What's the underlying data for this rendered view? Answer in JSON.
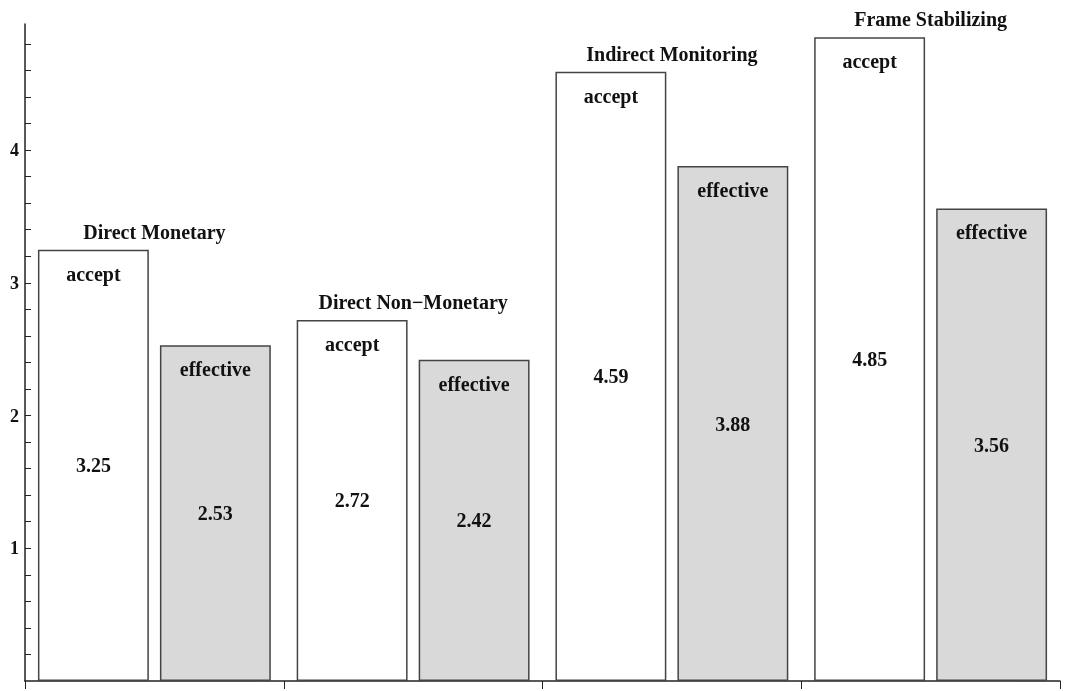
{
  "chart_data": {
    "type": "bar",
    "categories": [
      "Direct Monetary",
      "Direct Non−Monetary",
      "Indirect Monitoring",
      "Frame Stabilizing"
    ],
    "series": [
      {
        "name": "accept",
        "color": "#ffffff",
        "values": [
          3.25,
          2.72,
          4.59,
          4.85
        ]
      },
      {
        "name": "effective",
        "color": "#d9d9d9",
        "values": [
          2.53,
          2.42,
          3.88,
          3.56
        ]
      }
    ],
    "data_labels": true,
    "ylim": [
      0,
      4.95
    ],
    "yticks": [
      {
        "value": 0.2,
        "label": null
      },
      {
        "value": 0.4,
        "label": null
      },
      {
        "value": 0.6,
        "label": null
      },
      {
        "value": 0.8,
        "label": null
      },
      1,
      {
        "value": 1.2,
        "label": null
      },
      {
        "value": 1.4,
        "label": null
      },
      {
        "value": 1.6,
        "label": null
      },
      {
        "value": 1.8,
        "label": null
      },
      2,
      {
        "value": 2.2,
        "label": null
      },
      {
        "value": 2.4,
        "label": null
      },
      {
        "value": 2.6,
        "label": null
      },
      {
        "value": 2.8,
        "label": null
      },
      3,
      {
        "value": 3.2,
        "label": null
      },
      {
        "value": 3.4,
        "label": null
      },
      {
        "value": 3.6,
        "label": null
      },
      {
        "value": 3.8,
        "label": null
      },
      4,
      {
        "value": 4.2,
        "label": null
      },
      {
        "value": 4.4,
        "label": null
      },
      {
        "value": 4.6,
        "label": null
      },
      {
        "value": 4.8,
        "label": null
      }
    ],
    "grid": false,
    "legend": false,
    "tick_labels": "y"
  }
}
